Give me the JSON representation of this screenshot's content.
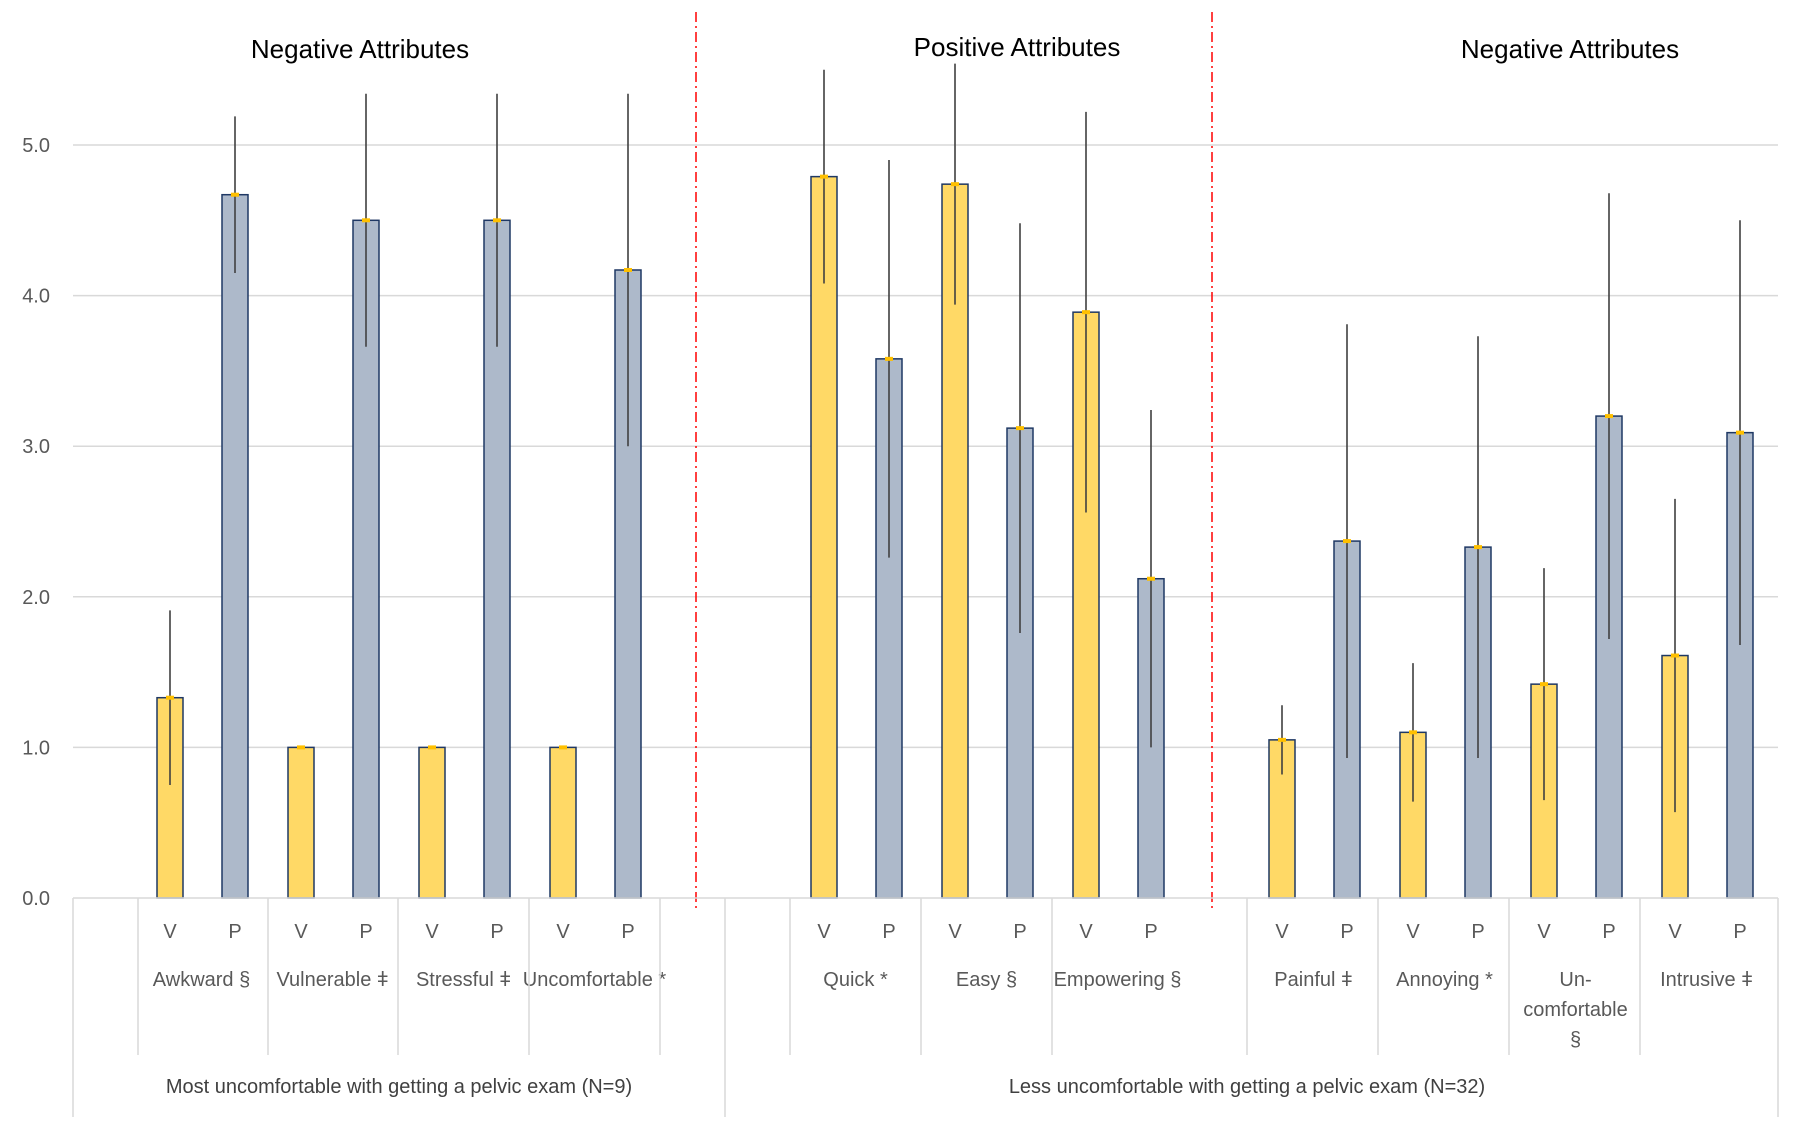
{
  "colors": {
    "virtual_bar": "#FFD966",
    "physical_bar": "#ADB9CA",
    "bar_border": "#1F3864",
    "error_bar": "#404040",
    "marker": "#FFC000",
    "grid": "#D9D9D9",
    "divider": "#FF0000"
  },
  "chart_data": {
    "type": "bar",
    "ylim": [
      0,
      5.5
    ],
    "yticks": [
      "0.0",
      "1.0",
      "2.0",
      "3.0",
      "4.0",
      "5.0"
    ],
    "grid": true,
    "section_titles": [
      "Negative Attributes",
      "Positive Attributes",
      "Negative Attributes"
    ],
    "series": [
      "V",
      "P"
    ],
    "attributes": [
      {
        "label": "Awkward §",
        "label_lines": [
          "Awkward §"
        ],
        "V": 1.33,
        "V_err": 0.58,
        "P": 4.67,
        "P_err": 0.52
      },
      {
        "label": "Vulnerable ǂ",
        "label_lines": [
          "Vulnerable ǂ"
        ],
        "V": 1.0,
        "V_err": 0,
        "P": 4.5,
        "P_err": 0.84
      },
      {
        "label": "Stressful ǂ",
        "label_lines": [
          "Stressful ǂ"
        ],
        "V": 1.0,
        "V_err": 0,
        "P": 4.5,
        "P_err": 0.84
      },
      {
        "label": "Uncomfortable *",
        "label_lines": [
          "Uncomfortable *"
        ],
        "V": 1.0,
        "V_err": 0,
        "P": 4.17,
        "P_err": 1.17
      },
      {
        "label": "Quick *",
        "label_lines": [
          "Quick *"
        ],
        "V": 4.79,
        "V_err": 0.71,
        "P": 3.58,
        "P_err": 1.32
      },
      {
        "label": "Easy §",
        "label_lines": [
          "Easy §"
        ],
        "V": 4.74,
        "V_err": 0.8,
        "P": 3.12,
        "P_err": 1.36
      },
      {
        "label": "Empowering §",
        "label_lines": [
          "Empowering §"
        ],
        "V": 3.89,
        "V_err": 1.33,
        "P": 2.12,
        "P_err": 1.12
      },
      {
        "label": "Painful ǂ",
        "label_lines": [
          "Painful ǂ"
        ],
        "V": 1.05,
        "V_err": 0.23,
        "P": 2.37,
        "P_err": 1.44
      },
      {
        "label": "Annoying *",
        "label_lines": [
          "Annoying *"
        ],
        "V": 1.1,
        "V_err": 0.46,
        "P": 2.33,
        "P_err": 1.4
      },
      {
        "label": "Un- comfortable §",
        "label_lines": [
          "Un-",
          "comfortable",
          "§"
        ],
        "V": 1.42,
        "V_err": 0.77,
        "P": 3.2,
        "P_err": 1.48
      },
      {
        "label": "Intrusive ǂ",
        "label_lines": [
          "Intrusive ǂ"
        ],
        "V": 1.61,
        "V_err": 1.04,
        "P": 3.09,
        "P_err": 1.41
      }
    ],
    "groups": [
      {
        "label": "Most uncomfortable with getting a pelvic exam (N=9)",
        "attribute_count": 4
      },
      {
        "label": "Less uncomfortable with getting a pelvic exam (N=32)",
        "attribute_count": 7
      }
    ]
  }
}
